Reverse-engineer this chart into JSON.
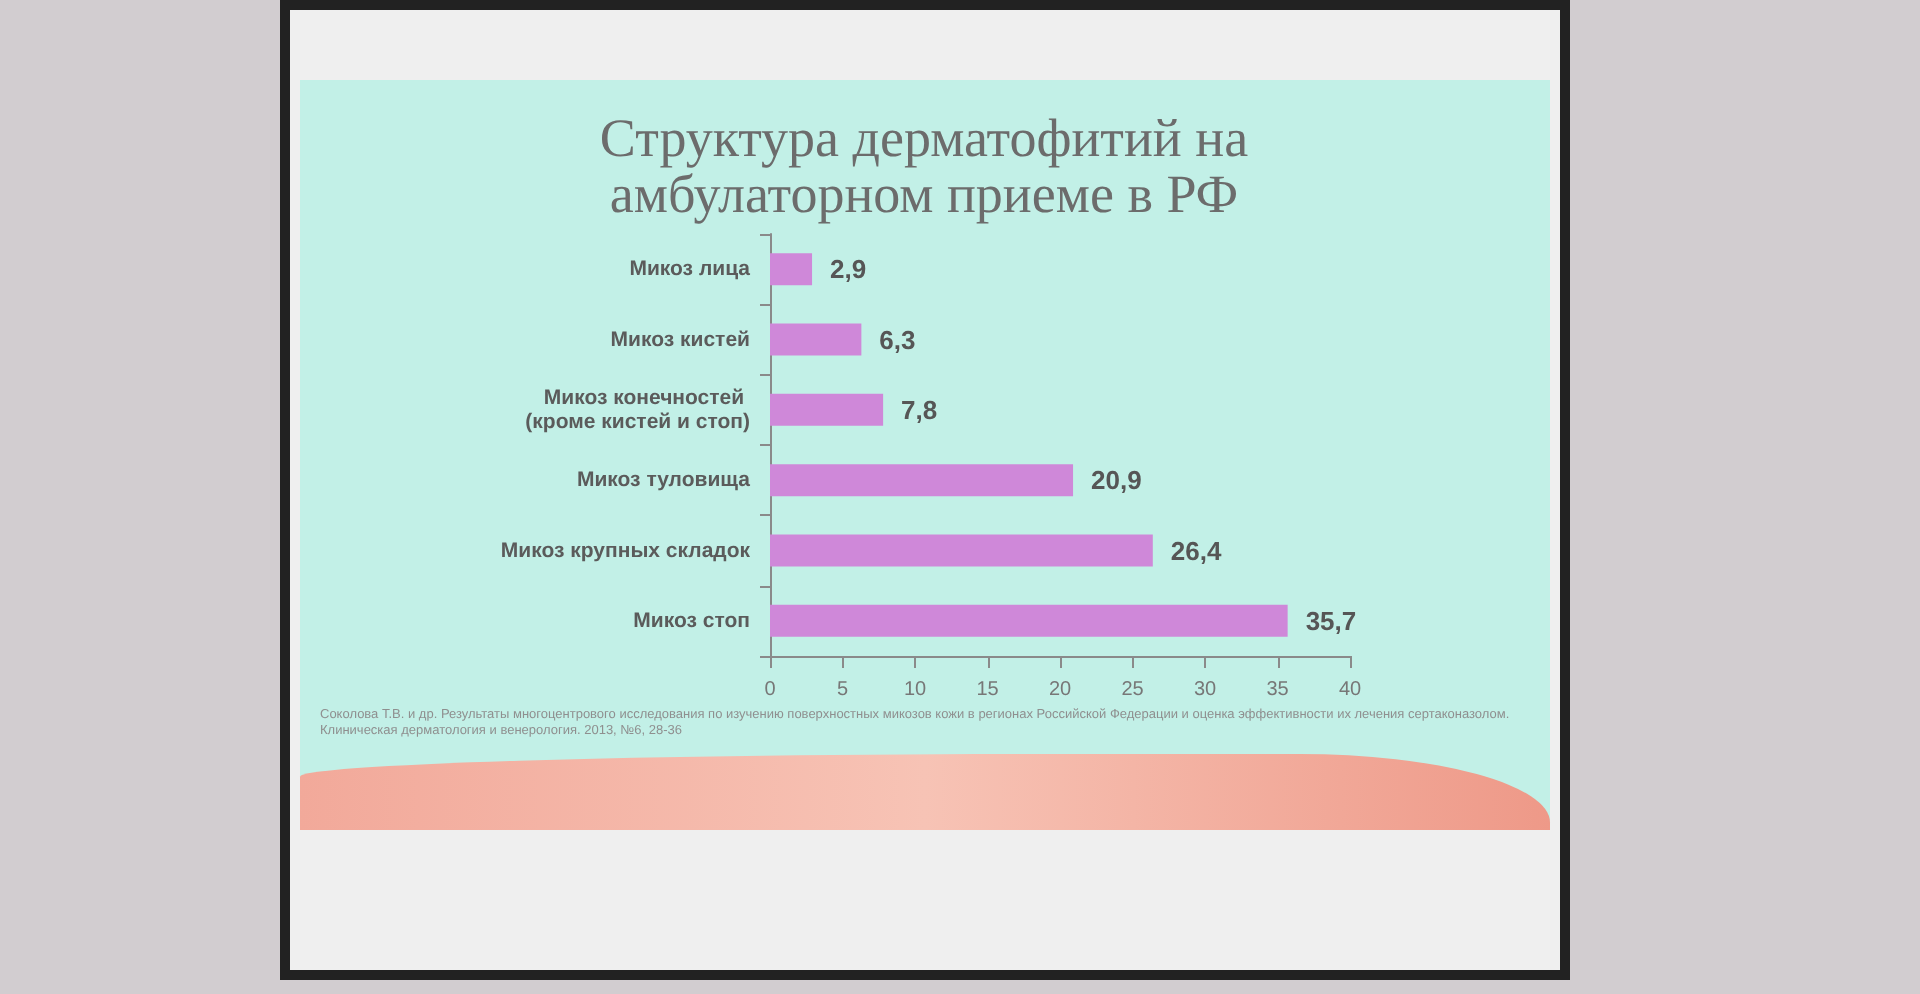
{
  "chart_data": {
    "type": "bar",
    "orientation": "horizontal",
    "title": "Структура дерматофитий на амбулаторном приеме в РФ",
    "categories": [
      "Микоз лица",
      "Микоз кистей",
      "Микоз конечностей (кроме кистей и стоп)",
      "Микоз туловища",
      "Микоз крупных складок",
      "Микоз стоп"
    ],
    "values": [
      2.9,
      6.3,
      7.8,
      20.9,
      26.4,
      35.7
    ],
    "value_labels": [
      "2,9",
      "6,3",
      "7,8",
      "20,9",
      "26,4",
      "35,7"
    ],
    "color": "#cf88d9",
    "xlim": [
      0,
      40
    ],
    "xticks": [
      0,
      5,
      10,
      15,
      20,
      25,
      30,
      35,
      40
    ],
    "annotations": [
      "Соколова Т.В. и др. Результаты многоцентрового исследования по изучению поверхностных микозов кожи в регионах Российской Федерации и оценка эффективности их лечения сертаконазолом. Клиническая дерматология и венерология. 2013, №6, 28-36"
    ]
  }
}
